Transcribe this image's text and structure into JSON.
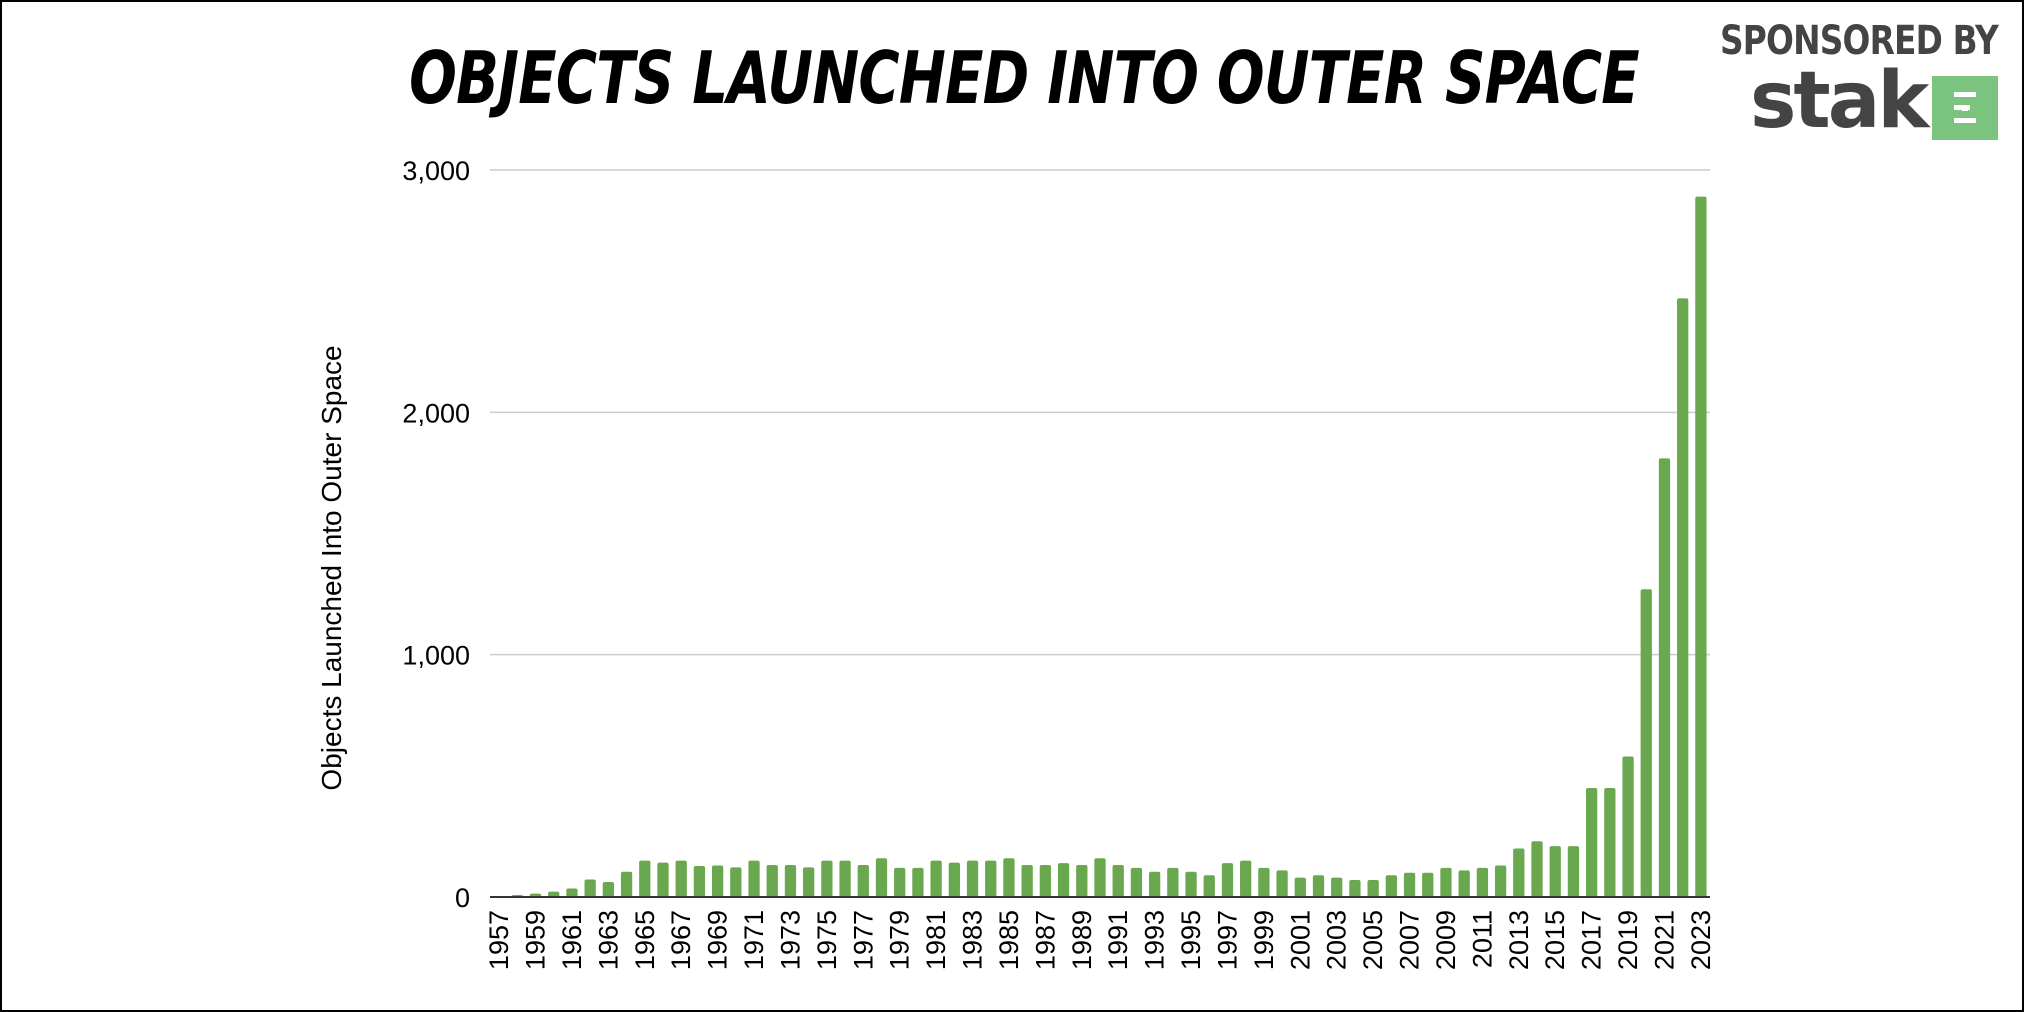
{
  "title": "OBJECTS LAUNCHED INTO OUTER SPACE",
  "sponsor": {
    "label": "SPONSORED BY",
    "brand": "stak",
    "icon": "stak-logo-icon",
    "icon_color": "#7bc47f"
  },
  "colors": {
    "bar": "#6aa84f",
    "grid": "#cccccc",
    "axis": "#333333"
  },
  "chart_data": {
    "type": "bar",
    "title": "OBJECTS LAUNCHED INTO OUTER SPACE",
    "xlabel": "",
    "ylabel": "Objects Launched Into Outer Space",
    "ylim": [
      0,
      3000
    ],
    "yticks": [
      0,
      1000,
      2000,
      3000
    ],
    "ytick_labels": [
      "0",
      "1,000",
      "2,000",
      "3,000"
    ],
    "grid": true,
    "legend": "none",
    "categories": [
      "1957",
      "1958",
      "1959",
      "1960",
      "1961",
      "1962",
      "1963",
      "1964",
      "1965",
      "1966",
      "1967",
      "1968",
      "1969",
      "1970",
      "1971",
      "1972",
      "1973",
      "1974",
      "1975",
      "1976",
      "1977",
      "1978",
      "1979",
      "1980",
      "1981",
      "1982",
      "1983",
      "1984",
      "1985",
      "1986",
      "1987",
      "1988",
      "1989",
      "1990",
      "1991",
      "1992",
      "1993",
      "1994",
      "1995",
      "1996",
      "1997",
      "1998",
      "1999",
      "2000",
      "2001",
      "2002",
      "2003",
      "2004",
      "2005",
      "2006",
      "2007",
      "2008",
      "2009",
      "2010",
      "2011",
      "2012",
      "2013",
      "2014",
      "2015",
      "2016",
      "2017",
      "2018",
      "2019",
      "2020",
      "2021",
      "2022",
      "2023"
    ],
    "x_tick_labels": [
      "1957",
      "1959",
      "1961",
      "1963",
      "1965",
      "1967",
      "1969",
      "1971",
      "1973",
      "1975",
      "1977",
      "1979",
      "1981",
      "1983",
      "1985",
      "1987",
      "1989",
      "1991",
      "1993",
      "1995",
      "1997",
      "1999",
      "2001",
      "2003",
      "2005",
      "2007",
      "2009",
      "2011",
      "2013",
      "2015",
      "2017",
      "2019",
      "2021",
      "2023"
    ],
    "values": [
      2,
      8,
      14,
      22,
      35,
      72,
      62,
      104,
      150,
      142,
      150,
      128,
      130,
      122,
      150,
      132,
      132,
      122,
      150,
      150,
      132,
      160,
      120,
      120,
      150,
      142,
      150,
      150,
      160,
      132,
      132,
      140,
      132,
      160,
      132,
      120,
      104,
      120,
      104,
      90,
      140,
      150,
      120,
      110,
      80,
      90,
      80,
      70,
      70,
      90,
      100,
      100,
      120,
      110,
      120,
      130,
      200,
      230,
      210,
      210,
      450,
      450,
      580,
      1270,
      1810,
      2470,
      2890
    ]
  }
}
